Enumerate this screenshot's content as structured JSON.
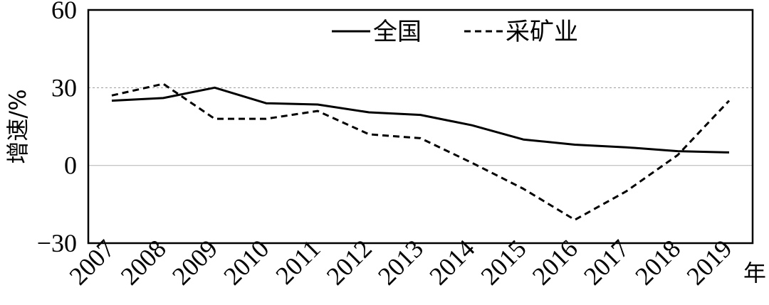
{
  "chart_data": {
    "type": "line",
    "categories": [
      "2007",
      "2008",
      "2009",
      "2010",
      "2011",
      "2012",
      "2013",
      "2014",
      "2015",
      "2016",
      "2017",
      "2018",
      "2019"
    ],
    "series": [
      {
        "name": "全国",
        "style": "solid",
        "values": [
          25,
          26,
          30,
          24,
          23.5,
          20.5,
          19.5,
          15.5,
          10,
          8,
          7,
          5.5,
          5
        ]
      },
      {
        "name": "采矿业",
        "style": "dashed",
        "values": [
          27,
          31.5,
          18,
          18,
          21,
          12,
          10.5,
          1,
          -9,
          -21,
          -10,
          4,
          25
        ]
      }
    ],
    "ylabel": "增速/%",
    "xlabel": "年",
    "ylim": [
      -30,
      60
    ],
    "yticks": [
      -30,
      0,
      30,
      60
    ],
    "legend_position": "top",
    "reference_lines": [
      0,
      30
    ],
    "colors": {
      "line": "#000000",
      "grid_zero": "#bbbbbb",
      "grid_30": "#999999"
    }
  }
}
